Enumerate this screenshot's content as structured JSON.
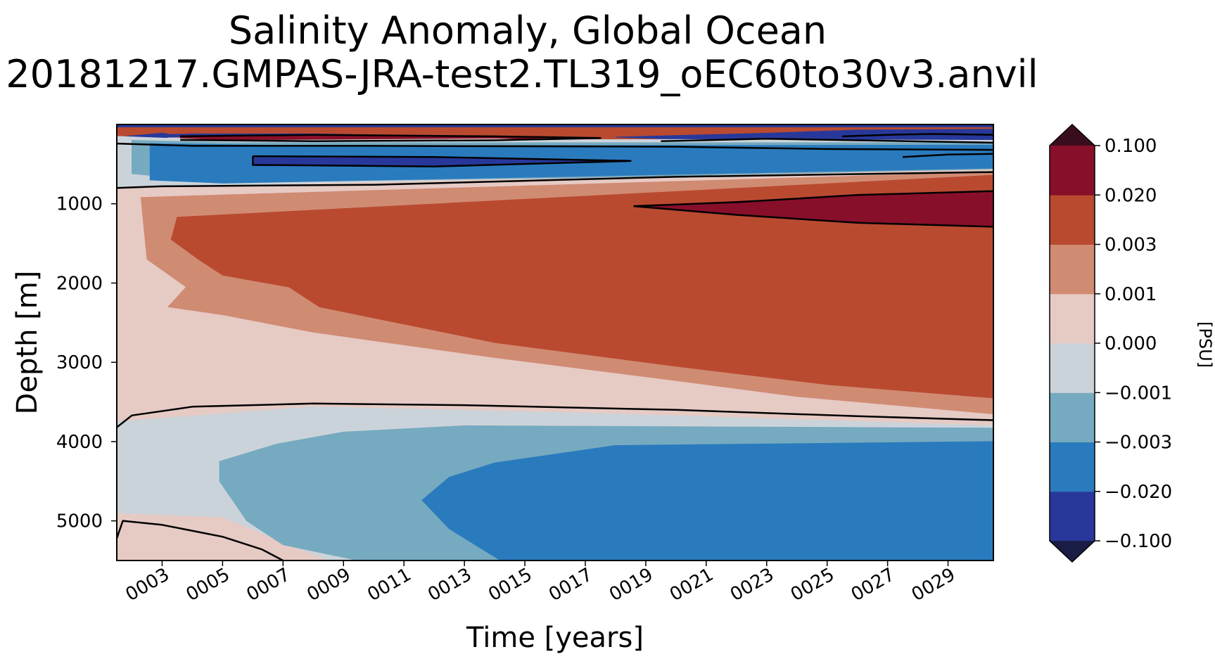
{
  "chart_data": {
    "type": "heatmap",
    "title": "Salinity Anomaly, Global Ocean",
    "subtitle": "20181217.GMPAS-JRA-test2.TL319_oEC60to30v3.anvil",
    "xlabel": "Time [years]",
    "ylabel": "Depth [m]",
    "xlim": [
      1.5,
      30.5
    ],
    "ylim": [
      5500,
      0
    ],
    "x_ticks": [
      "0003",
      "0005",
      "0007",
      "0009",
      "0011",
      "0013",
      "0015",
      "0017",
      "0019",
      "0021",
      "0023",
      "0025",
      "0027",
      "0029"
    ],
    "x_tick_values": [
      3,
      5,
      7,
      9,
      11,
      13,
      15,
      17,
      19,
      21,
      23,
      25,
      27,
      29
    ],
    "y_ticks": [
      "1000",
      "2000",
      "3000",
      "4000",
      "5000"
    ],
    "y_tick_values": [
      1000,
      2000,
      3000,
      4000,
      5000
    ],
    "colorbar": {
      "label": "[PSU]",
      "levels": [
        "−0.100",
        "−0.020",
        "−0.003",
        "−0.001",
        "0.000",
        "0.001",
        "0.003",
        "0.020",
        "0.100"
      ],
      "colors": [
        "#28389a",
        "#2a7bbd",
        "#76aac0",
        "#cbd3da",
        "#e6cac4",
        "#d08b73",
        "#b94a30",
        "#880f2a"
      ],
      "under_color": "#1a1d45",
      "over_color": "#3a0d1e"
    },
    "bands": [
      {
        "level": 0,
        "points": [
          [
            1.5,
            0
          ],
          [
            30.5,
            0
          ],
          [
            30.5,
            160
          ],
          [
            1.5,
            160
          ]
        ]
      },
      {
        "level": 6,
        "points": [
          [
            1.5,
            40
          ],
          [
            30.5,
            40
          ],
          [
            30.5,
            640
          ],
          [
            25,
            600
          ],
          [
            21,
            420
          ],
          [
            17.5,
            240
          ],
          [
            14,
            150
          ],
          [
            8,
            110
          ],
          [
            4,
            110
          ],
          [
            2.3,
            125
          ],
          [
            1.5,
            160
          ]
        ]
      },
      {
        "level": 7,
        "points": [
          [
            3.6,
            140
          ],
          [
            14,
            150
          ],
          [
            17.5,
            210
          ],
          [
            14,
            170
          ],
          [
            3.6,
            200
          ]
        ]
      },
      {
        "level": 0,
        "points": [
          [
            1.8,
            150
          ],
          [
            3,
            110
          ],
          [
            3.5,
            140
          ],
          [
            3,
            175
          ],
          [
            1.8,
            175
          ]
        ]
      },
      {
        "level": 0,
        "points": [
          [
            18,
            160
          ],
          [
            23,
            110
          ],
          [
            26,
            70
          ],
          [
            30.5,
            60
          ],
          [
            30.5,
            200
          ],
          [
            27,
            200
          ],
          [
            23,
            220
          ]
        ]
      },
      {
        "level": 3,
        "points": [
          [
            1.5,
            150
          ],
          [
            5,
            200
          ],
          [
            20,
            190
          ],
          [
            30.5,
            200
          ],
          [
            30.5,
            580
          ],
          [
            1.5,
            800
          ]
        ]
      },
      {
        "level": 2,
        "points": [
          [
            2,
            200
          ],
          [
            5,
            230
          ],
          [
            30.5,
            230
          ],
          [
            30.5,
            600
          ],
          [
            5,
            730
          ],
          [
            2,
            620
          ]
        ]
      },
      {
        "level": 1,
        "points": [
          [
            2.6,
            240
          ],
          [
            8,
            270
          ],
          [
            30.5,
            260
          ],
          [
            30.5,
            550
          ],
          [
            5,
            740
          ],
          [
            2.6,
            700
          ]
        ]
      },
      {
        "level": 0,
        "points": [
          [
            6,
            420
          ],
          [
            12,
            420
          ],
          [
            18.5,
            450
          ],
          [
            12,
            520
          ],
          [
            6,
            520
          ]
        ]
      },
      {
        "level": 4,
        "points": [
          [
            1.5,
            800
          ],
          [
            30.5,
            570
          ],
          [
            30.5,
            3780
          ],
          [
            18,
            3620
          ],
          [
            8,
            3530
          ],
          [
            4,
            3560
          ],
          [
            1.8,
            3620
          ],
          [
            1.5,
            3900
          ]
        ]
      },
      {
        "level": 5,
        "points": [
          [
            2.3,
            920
          ],
          [
            30.5,
            600
          ],
          [
            30.5,
            3650
          ],
          [
            24,
            3430
          ],
          [
            20,
            3230
          ],
          [
            14,
            2940
          ],
          [
            8,
            2620
          ],
          [
            5,
            2400
          ],
          [
            3.2,
            2300
          ],
          [
            3.8,
            2050
          ],
          [
            2.5,
            1700
          ]
        ]
      },
      {
        "level": 6,
        "points": [
          [
            3.5,
            1170
          ],
          [
            30.5,
            640
          ],
          [
            30.5,
            3450
          ],
          [
            25,
            3280
          ],
          [
            20,
            3050
          ],
          [
            14,
            2750
          ],
          [
            8.2,
            2300
          ],
          [
            7.2,
            2050
          ],
          [
            5,
            1900
          ],
          [
            4.2,
            1700
          ],
          [
            3.3,
            1450
          ]
        ]
      },
      {
        "level": 7,
        "points": [
          [
            18.6,
            1030
          ],
          [
            26,
            900
          ],
          [
            30.5,
            840
          ],
          [
            30.5,
            1290
          ],
          [
            26,
            1230
          ],
          [
            22,
            1130
          ]
        ]
      },
      {
        "level": 3,
        "points": [
          [
            1.5,
            3750
          ],
          [
            8,
            3560
          ],
          [
            18,
            3650
          ],
          [
            30.5,
            3800
          ],
          [
            30.5,
            5500
          ],
          [
            8.5,
            5500
          ],
          [
            5,
            4950
          ],
          [
            1.5,
            4900
          ]
        ]
      },
      {
        "level": 2,
        "points": [
          [
            4.9,
            4250
          ],
          [
            6.8,
            4030
          ],
          [
            9,
            3880
          ],
          [
            13,
            3800
          ],
          [
            30.5,
            3830
          ],
          [
            30.5,
            5500
          ],
          [
            9.5,
            5500
          ],
          [
            7,
            5300
          ],
          [
            5.8,
            5000
          ],
          [
            4.9,
            4500
          ]
        ]
      },
      {
        "level": 1,
        "points": [
          [
            11.6,
            4740
          ],
          [
            12.5,
            4450
          ],
          [
            14,
            4270
          ],
          [
            18,
            4050
          ],
          [
            30.5,
            4000
          ],
          [
            30.5,
            5500
          ],
          [
            14.2,
            5500
          ],
          [
            12.5,
            5100
          ]
        ]
      },
      {
        "level": 4,
        "points": [
          [
            1.5,
            5050
          ],
          [
            3,
            5120
          ],
          [
            5,
            5230
          ],
          [
            6.2,
            5350
          ],
          [
            7,
            5500
          ],
          [
            1.5,
            5500
          ]
        ]
      }
    ],
    "contours": [
      {
        "points": [
          [
            1.5,
            800
          ],
          [
            3,
            780
          ],
          [
            10,
            760
          ],
          [
            20,
            660
          ],
          [
            30.5,
            600
          ]
        ]
      },
      {
        "points": [
          [
            18.6,
            1030
          ],
          [
            22,
            980
          ],
          [
            26,
            890
          ],
          [
            30.5,
            840
          ]
        ]
      },
      {
        "points": [
          [
            18.6,
            1030
          ],
          [
            22,
            1140
          ],
          [
            26,
            1240
          ],
          [
            30.5,
            1290
          ]
        ]
      },
      {
        "points": [
          [
            1.5,
            3820
          ],
          [
            2,
            3670
          ],
          [
            4,
            3560
          ],
          [
            8,
            3520
          ],
          [
            13,
            3540
          ],
          [
            20,
            3600
          ],
          [
            26,
            3680
          ],
          [
            30.5,
            3730
          ]
        ]
      },
      {
        "points": [
          [
            1.5,
            5220
          ],
          [
            1.7,
            5000
          ],
          [
            3,
            5050
          ],
          [
            5,
            5200
          ],
          [
            6.3,
            5360
          ],
          [
            7,
            5500
          ]
        ]
      },
      {
        "points": [
          [
            6,
            400
          ],
          [
            12,
            410
          ],
          [
            18.5,
            460
          ],
          [
            12,
            530
          ],
          [
            6,
            510
          ],
          [
            6,
            400
          ]
        ]
      },
      {
        "points": [
          [
            3.6,
            150
          ],
          [
            8,
            130
          ],
          [
            14,
            150
          ],
          [
            17.5,
            170
          ],
          [
            14,
            200
          ],
          [
            8,
            210
          ],
          [
            3.6,
            195
          ]
        ]
      },
      {
        "points": [
          [
            1.5,
            240
          ],
          [
            4,
            270
          ],
          [
            10,
            270
          ],
          [
            20,
            280
          ],
          [
            25,
            310
          ],
          [
            30.5,
            320
          ]
        ]
      },
      {
        "points": [
          [
            19.5,
            210
          ],
          [
            23,
            180
          ],
          [
            26,
            200
          ],
          [
            30.5,
            230
          ]
        ]
      },
      {
        "points": [
          [
            25.5,
            150
          ],
          [
            27,
            130
          ],
          [
            28.5,
            120
          ],
          [
            30.5,
            130
          ]
        ]
      },
      {
        "points": [
          [
            27.5,
            410
          ],
          [
            29,
            380
          ],
          [
            30.5,
            370
          ]
        ]
      }
    ]
  }
}
